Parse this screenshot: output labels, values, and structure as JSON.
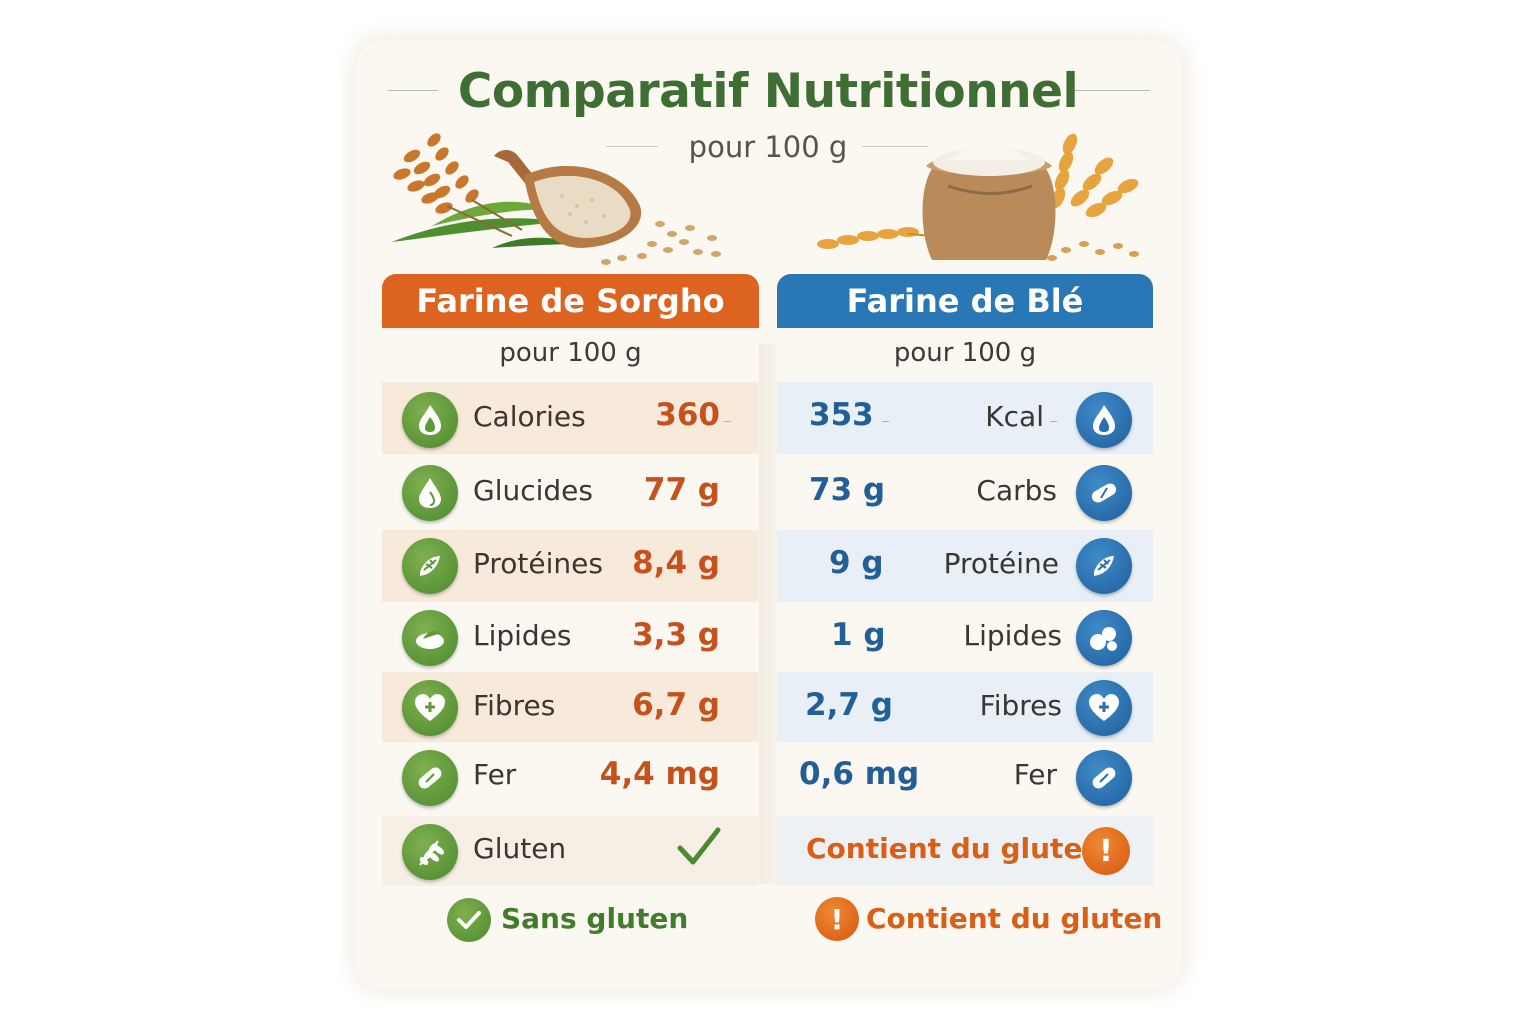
{
  "title": "Comparatif Nutritionnel",
  "subtitle": "pour 100 g",
  "colors": {
    "title_green": "#3f6e35",
    "sorgho_orange": "#dd6420",
    "ble_blue": "#2a77b5",
    "value_orange": "#c5511d",
    "value_blue": "#235f97",
    "warning_orange": "#e06a16",
    "ok_green": "#4b8a2e"
  },
  "left": {
    "header": "Farine de Sorgho",
    "sub": "pour 100 g",
    "rows": [
      {
        "icon": "flame-icon",
        "label": "Calories",
        "value": "360"
      },
      {
        "icon": "drop-icon",
        "label": "Glucides",
        "value": "77 g"
      },
      {
        "icon": "protein-icon",
        "label": "Protéines",
        "value": "8,4 g"
      },
      {
        "icon": "oil-icon",
        "label": "Lipides",
        "value": "3,3 g"
      },
      {
        "icon": "heart-plus-icon",
        "label": "Fibres",
        "value": "6,7 g"
      },
      {
        "icon": "pill-icon",
        "label": "Fer",
        "value": "4,4 mg"
      },
      {
        "icon": "wheat-icon",
        "label": "Gluten",
        "value": ""
      }
    ],
    "footer": "Sans gluten"
  },
  "right": {
    "header": "Farine de Blé",
    "sub": "pour 100 g",
    "rows": [
      {
        "icon": "flame-icon",
        "label": "Kcal",
        "value": "353"
      },
      {
        "icon": "pill-icon",
        "label": "Carbs",
        "value": "73 g"
      },
      {
        "icon": "protein-icon",
        "label": "Protéine",
        "value": "9 g"
      },
      {
        "icon": "oil-drops-icon",
        "label": "Lipides",
        "value": "1 g"
      },
      {
        "icon": "heart-plus-icon",
        "label": "Fibres",
        "value": "2,7 g"
      },
      {
        "icon": "pill-icon",
        "label": "Fer",
        "value": "0,6 mg"
      },
      {
        "icon": "warning-icon",
        "label": "Contient du gluten",
        "value": ""
      }
    ],
    "footer": "Contient du gluten"
  }
}
